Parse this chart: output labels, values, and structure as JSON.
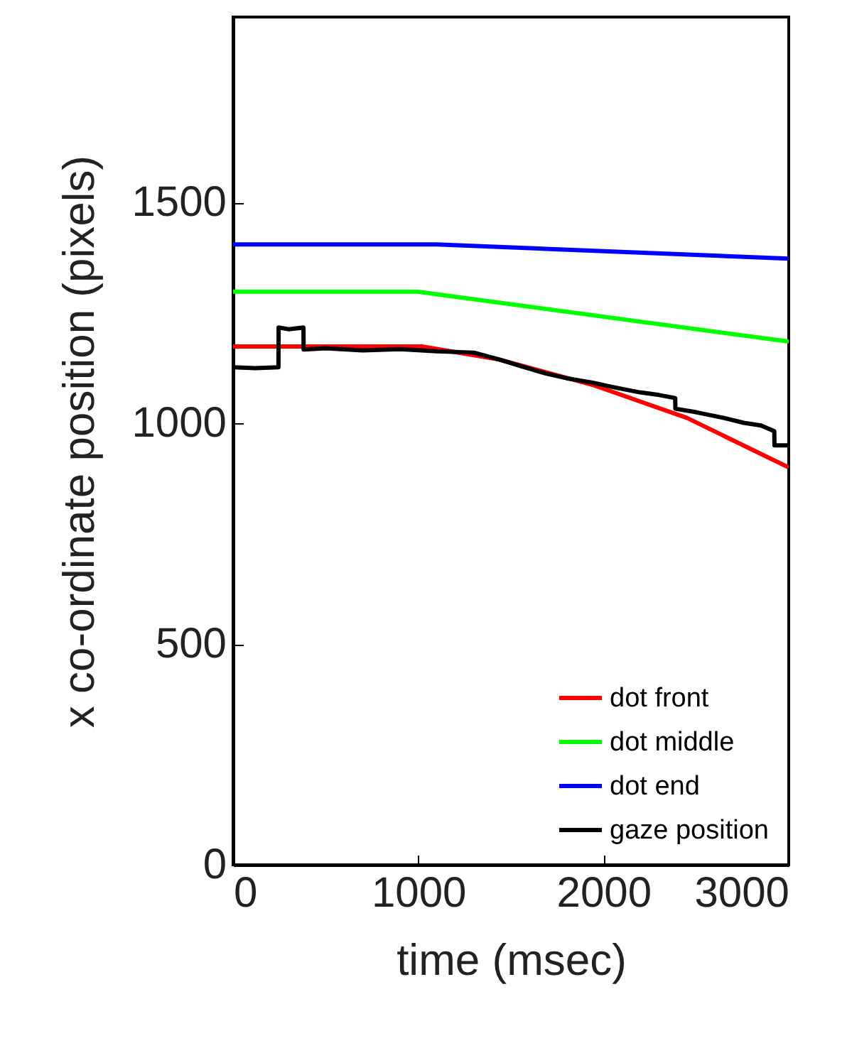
{
  "chart_data": {
    "type": "line",
    "xlabel": "time (msec)",
    "ylabel": "x co-ordinate position (pixels)",
    "xlim": [
      0,
      3000
    ],
    "xticks": [
      0,
      1000,
      2000,
      3000
    ],
    "ylim": [
      0,
      1920
    ],
    "yticks": [
      0,
      500,
      1000,
      1500
    ],
    "grid": false,
    "legend": "bottom right",
    "marker": "none",
    "line_style": "solid",
    "series": [
      {
        "name": "dot front",
        "color": "#ff0000",
        "x": [
          0,
          1020,
          1431,
          1941,
          2451,
          3000
        ],
        "values": [
          1174,
          1174,
          1145,
          1087,
          1012,
          900
        ]
      },
      {
        "name": "dot middle",
        "color": "#00ff00",
        "x": [
          0,
          995,
          3000
        ],
        "values": [
          1298,
          1298,
          1185
        ]
      },
      {
        "name": "dot end",
        "color": "#0000ff",
        "x": [
          0,
          1100,
          3000
        ],
        "values": [
          1405,
          1405,
          1373
        ]
      },
      {
        "name": "gaze position",
        "color": "#000000",
        "x": [
          0,
          120,
          245,
          246,
          300,
          380,
          381,
          500,
          700,
          900,
          1100,
          1300,
          1431,
          1550,
          1686,
          1800,
          1941,
          2050,
          2196,
          2300,
          2387,
          2388,
          2500,
          2650,
          2757,
          2850,
          2922,
          2923,
          3000
        ],
        "values": [
          1127,
          1125,
          1127,
          1217,
          1213,
          1217,
          1167,
          1170,
          1165,
          1168,
          1163,
          1160,
          1145,
          1130,
          1113,
          1102,
          1092,
          1082,
          1070,
          1064,
          1057,
          1033,
          1025,
          1012,
          1001,
          995,
          982,
          950,
          950
        ]
      }
    ]
  }
}
